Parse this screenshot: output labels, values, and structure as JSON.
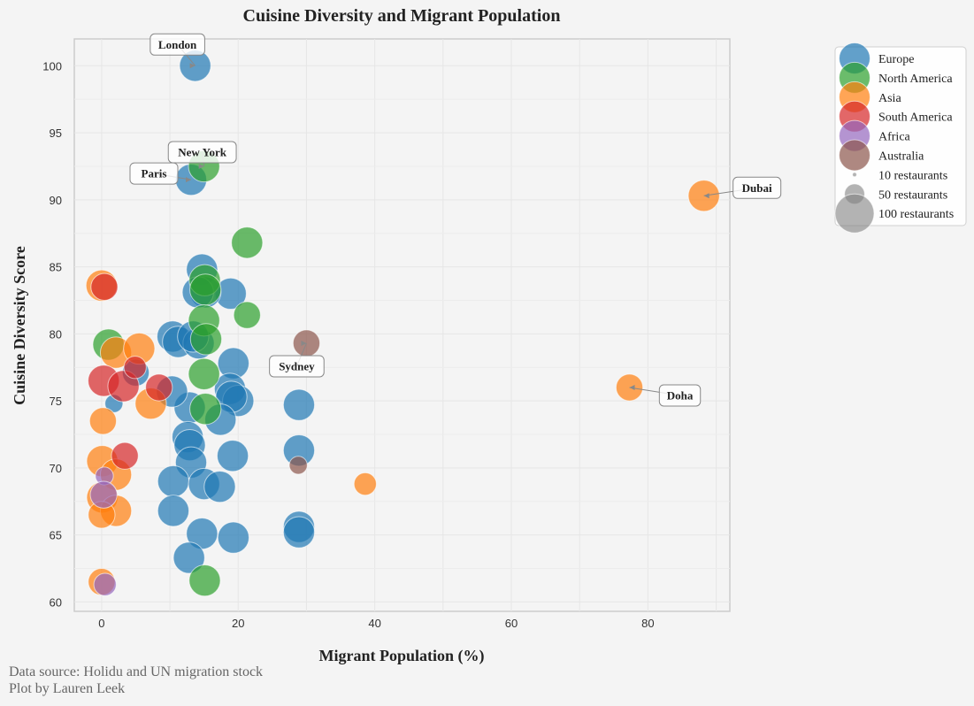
{
  "chart_data": {
    "type": "scatter",
    "title": "Cuisine Diversity and Migrant Population",
    "xlabel": "Migrant Population (%)",
    "ylabel": "Cuisine Diversity Score",
    "xlim": [
      -4,
      92
    ],
    "ylim": [
      59.3,
      102
    ],
    "xticks": [
      0,
      20,
      40,
      60,
      80
    ],
    "yticks": [
      60,
      65,
      70,
      75,
      80,
      85,
      90,
      95,
      100
    ],
    "grid": true,
    "legend_position": "outside-top-right",
    "size_legend": [
      {
        "label": "10 restaurants",
        "value": 10
      },
      {
        "label": "50 restaurants",
        "value": 50
      },
      {
        "label": "100 restaurants",
        "value": 100
      }
    ],
    "series": [
      {
        "name": "Europe",
        "color": "#1f77b4",
        "points": [
          {
            "x": 13.7,
            "y": 100,
            "r": 70
          },
          {
            "x": 13.1,
            "y": 91.5,
            "r": 70
          },
          {
            "x": 14.7,
            "y": 84.8,
            "r": 70
          },
          {
            "x": 18.9,
            "y": 83,
            "r": 70
          },
          {
            "x": 15.2,
            "y": 83.1,
            "r": 70
          },
          {
            "x": 14.1,
            "y": 83.1,
            "r": 70
          },
          {
            "x": 10.4,
            "y": 79.8,
            "r": 70
          },
          {
            "x": 11.2,
            "y": 79.4,
            "r": 70
          },
          {
            "x": 14.2,
            "y": 79.3,
            "r": 70
          },
          {
            "x": 13.4,
            "y": 79.8,
            "r": 70
          },
          {
            "x": 19.3,
            "y": 77.8,
            "r": 70
          },
          {
            "x": 18.8,
            "y": 75.9,
            "r": 70
          },
          {
            "x": 20,
            "y": 75,
            "r": 70
          },
          {
            "x": 19,
            "y": 75.3,
            "r": 70
          },
          {
            "x": 17.4,
            "y": 73.6,
            "r": 70
          },
          {
            "x": 12.9,
            "y": 74.5,
            "r": 70
          },
          {
            "x": 10.3,
            "y": 75.7,
            "r": 70
          },
          {
            "x": 1.8,
            "y": 74.8,
            "r": 40
          },
          {
            "x": 5,
            "y": 77.1,
            "r": 60
          },
          {
            "x": 12.6,
            "y": 72.3,
            "r": 70
          },
          {
            "x": 12.9,
            "y": 71.7,
            "r": 70
          },
          {
            "x": 13.1,
            "y": 70.4,
            "r": 70
          },
          {
            "x": 19.2,
            "y": 70.9,
            "r": 70
          },
          {
            "x": 10.5,
            "y": 69,
            "r": 70
          },
          {
            "x": 15,
            "y": 68.8,
            "r": 70
          },
          {
            "x": 17.3,
            "y": 68.6,
            "r": 70
          },
          {
            "x": 10.5,
            "y": 66.8,
            "r": 70
          },
          {
            "x": 14.7,
            "y": 65.1,
            "r": 70
          },
          {
            "x": 19.3,
            "y": 64.8,
            "r": 70
          },
          {
            "x": 12.8,
            "y": 63.3,
            "r": 70
          },
          {
            "x": 28.9,
            "y": 74.7,
            "r": 70
          },
          {
            "x": 28.9,
            "y": 71.3,
            "r": 70
          },
          {
            "x": 28.9,
            "y": 65.6,
            "r": 70
          },
          {
            "x": 28.9,
            "y": 65.2,
            "r": 70
          }
        ]
      },
      {
        "name": "North America",
        "color": "#2ca02c",
        "points": [
          {
            "x": 15,
            "y": 92.5,
            "r": 70
          },
          {
            "x": 21.3,
            "y": 86.8,
            "r": 70
          },
          {
            "x": 15.1,
            "y": 84,
            "r": 70
          },
          {
            "x": 15.2,
            "y": 83.3,
            "r": 70
          },
          {
            "x": 21.3,
            "y": 81.4,
            "r": 60
          },
          {
            "x": 15,
            "y": 81,
            "r": 70
          },
          {
            "x": 15.3,
            "y": 79.6,
            "r": 70
          },
          {
            "x": 15,
            "y": 77,
            "r": 70
          },
          {
            "x": 15.2,
            "y": 74.4,
            "r": 70
          },
          {
            "x": 1,
            "y": 79.2,
            "r": 70
          },
          {
            "x": 15.1,
            "y": 61.6,
            "r": 70
          }
        ]
      },
      {
        "name": "Asia",
        "color": "#ff7f0e",
        "points": [
          {
            "x": 88.2,
            "y": 90.3,
            "r": 70
          },
          {
            "x": 77.3,
            "y": 76,
            "r": 60
          },
          {
            "x": 38.6,
            "y": 68.8,
            "r": 50
          },
          {
            "x": 0,
            "y": 83.6,
            "r": 70
          },
          {
            "x": 2.1,
            "y": 78.6,
            "r": 70
          },
          {
            "x": 5.5,
            "y": 78.9,
            "r": 70
          },
          {
            "x": 7.2,
            "y": 74.8,
            "r": 70
          },
          {
            "x": 0.2,
            "y": 73.5,
            "r": 60
          },
          {
            "x": 0.1,
            "y": 70.5,
            "r": 70
          },
          {
            "x": 2.1,
            "y": 69.5,
            "r": 70
          },
          {
            "x": 0.1,
            "y": 67.8,
            "r": 70
          },
          {
            "x": 2.1,
            "y": 66.8,
            "r": 70
          },
          {
            "x": 0,
            "y": 66.5,
            "r": 60
          },
          {
            "x": 0,
            "y": 61.5,
            "r": 60
          }
        ]
      },
      {
        "name": "South America",
        "color": "#d62728",
        "points": [
          {
            "x": 0.4,
            "y": 83.5,
            "r": 60
          },
          {
            "x": 0.3,
            "y": 76.5,
            "r": 70
          },
          {
            "x": 3.2,
            "y": 76.1,
            "r": 70
          },
          {
            "x": 4.9,
            "y": 77.5,
            "r": 50
          },
          {
            "x": 8.4,
            "y": 76,
            "r": 60
          },
          {
            "x": 3.4,
            "y": 70.9,
            "r": 60
          }
        ]
      },
      {
        "name": "Africa",
        "color": "#9467bd",
        "points": [
          {
            "x": 0.4,
            "y": 69.4,
            "r": 40
          },
          {
            "x": 0.3,
            "y": 68,
            "r": 60
          },
          {
            "x": 0.5,
            "y": 61.3,
            "r": 50
          }
        ]
      },
      {
        "name": "Australia",
        "color": "#8c564b",
        "points": [
          {
            "x": 30,
            "y": 79.3,
            "r": 60
          },
          {
            "x": 28.8,
            "y": 70.2,
            "r": 40
          }
        ]
      }
    ],
    "annotations": [
      {
        "text": "London",
        "x": 13.7,
        "y": 100
      },
      {
        "text": "New York",
        "x": 15,
        "y": 92.5
      },
      {
        "text": "Paris",
        "x": 13.1,
        "y": 91.5
      },
      {
        "text": "Dubai",
        "x": 88.2,
        "y": 90.3
      },
      {
        "text": "Sydney",
        "x": 30,
        "y": 79.3
      },
      {
        "text": "Doha",
        "x": 77.3,
        "y": 76
      }
    ]
  },
  "footer": {
    "source": "Data source: Holidu and UN migration stock",
    "credit": "Plot by Lauren Leek"
  }
}
